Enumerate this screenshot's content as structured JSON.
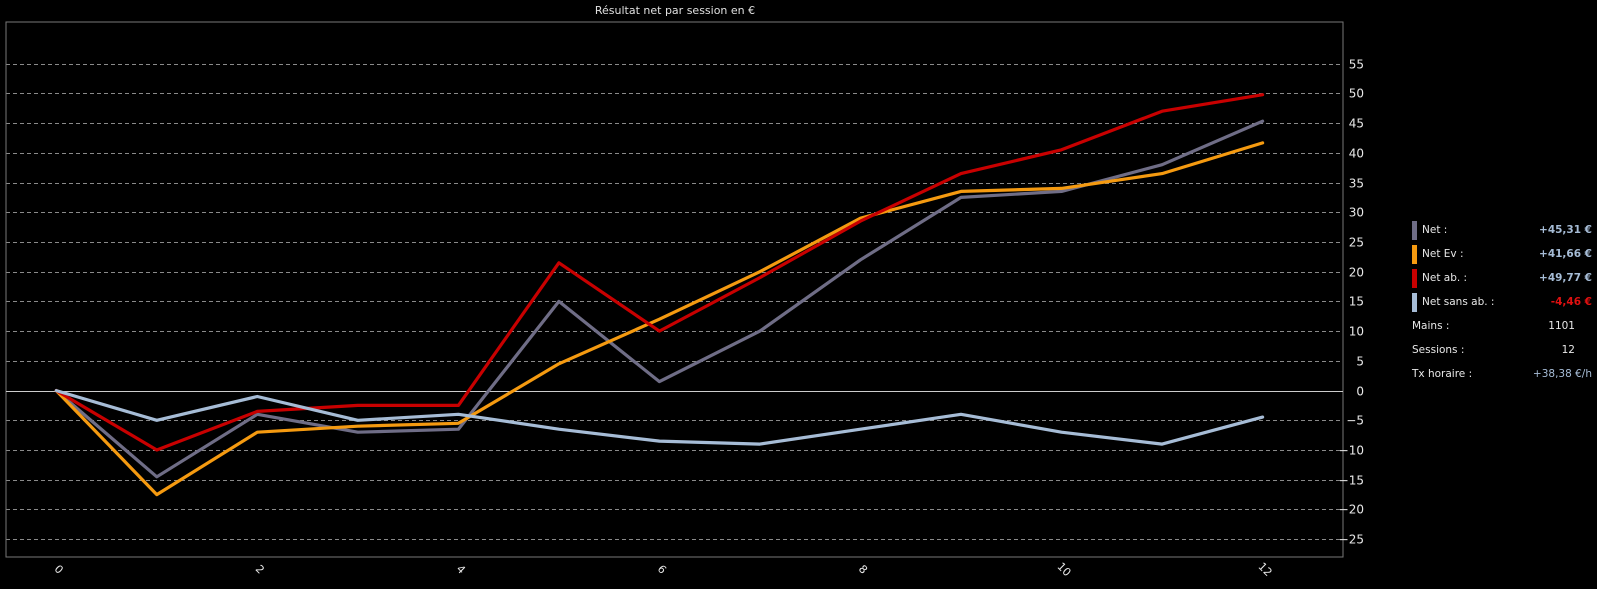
{
  "title": "Résultat net par session en €",
  "colors": {
    "background": "#000000",
    "grid": "#8a8a8a",
    "axis": "#cccccc",
    "positive_value": "#a6bcd6",
    "negative_value": "#e01010"
  },
  "chart_data": {
    "type": "line",
    "x": [
      0,
      1,
      2,
      3,
      4,
      5,
      6,
      7,
      8,
      9,
      10,
      11,
      12
    ],
    "x_tick_labels": [
      {
        "x": 0,
        "label": "0"
      },
      {
        "x": 2,
        "label": "2"
      },
      {
        "x": 4,
        "label": "4"
      },
      {
        "x": 6,
        "label": "6"
      },
      {
        "x": 8,
        "label": "8"
      },
      {
        "x": 10,
        "label": "10"
      },
      {
        "x": 12,
        "label": "12"
      }
    ],
    "xlim": [
      -0.5,
      12.8
    ],
    "ylim": [
      -28,
      62
    ],
    "y_ticks": [
      -25,
      -20,
      -15,
      -10,
      -5,
      0,
      5,
      10,
      15,
      20,
      25,
      30,
      35,
      40,
      45,
      50,
      55
    ],
    "grid": true,
    "legend": "right",
    "series": [
      {
        "name": "Net :",
        "color": "#6f6d86",
        "values": [
          0,
          -14.5,
          -4,
          -7,
          -6.5,
          15,
          1.5,
          10,
          22,
          32.5,
          33.5,
          38,
          45.31
        ]
      },
      {
        "name": "Net Ev :",
        "color": "#f59a10",
        "values": [
          0,
          -17.5,
          -7,
          -6,
          -5.5,
          4.5,
          12,
          20,
          29,
          33.5,
          34,
          36.5,
          41.66
        ]
      },
      {
        "name": "Net ab. :",
        "color": "#c80000",
        "values": [
          0,
          -10,
          -3.5,
          -2.5,
          -2.5,
          21.5,
          10,
          19,
          28.5,
          36.5,
          40.5,
          47,
          49.77
        ]
      },
      {
        "name": "Net sans ab. :",
        "color": "#a6bcd6",
        "values": [
          0,
          -5,
          -1,
          -5,
          -4,
          -6.5,
          -8.5,
          -9,
          -6.5,
          -4,
          -7,
          -9,
          -4.46
        ]
      }
    ]
  },
  "legend": {
    "items": [
      {
        "label": "Net :",
        "value": "+45,31 €",
        "color": "#6f6d86",
        "value_color": "#a6bcd6"
      },
      {
        "label": "Net Ev :",
        "value": "+41,66 €",
        "color": "#f59a10",
        "value_color": "#a6bcd6"
      },
      {
        "label": "Net ab. :",
        "value": "+49,77 €",
        "color": "#c80000",
        "value_color": "#a6bcd6"
      },
      {
        "label": "Net sans ab. :",
        "value": "-4,46 €",
        "color": "#a6bcd6",
        "value_color": "#e01010"
      }
    ],
    "stats": [
      {
        "label": "Mains :",
        "value": "1101"
      },
      {
        "label": "Sessions :",
        "value": "12"
      },
      {
        "label": "Tx horaire :",
        "value": "+38,38 €/h"
      }
    ]
  }
}
